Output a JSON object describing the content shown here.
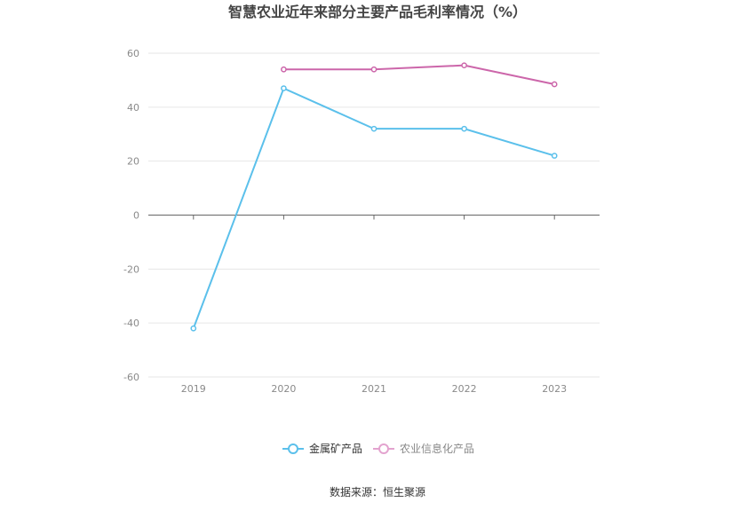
{
  "chart_data": {
    "type": "line",
    "title": "智慧农业近年来部分主要产品毛利率情况（%）",
    "categories": [
      "2019",
      "2020",
      "2021",
      "2022",
      "2023"
    ],
    "yticks": [
      "60",
      "40",
      "20",
      "0",
      "-20",
      "-40",
      "-60"
    ],
    "ylim": [
      -60,
      60
    ],
    "grid": true,
    "legend_position": "bottom",
    "series": [
      {
        "name": "金属矿产品",
        "color": "#5bc0eb",
        "values": [
          -42.0,
          47.0,
          32.0,
          32.0,
          22.0
        ]
      },
      {
        "name": "农业信息化产品",
        "color": "#cc66aa",
        "values": [
          null,
          54.0,
          54.0,
          55.5,
          48.5
        ]
      }
    ],
    "source": "数据来源：恒生聚源"
  }
}
